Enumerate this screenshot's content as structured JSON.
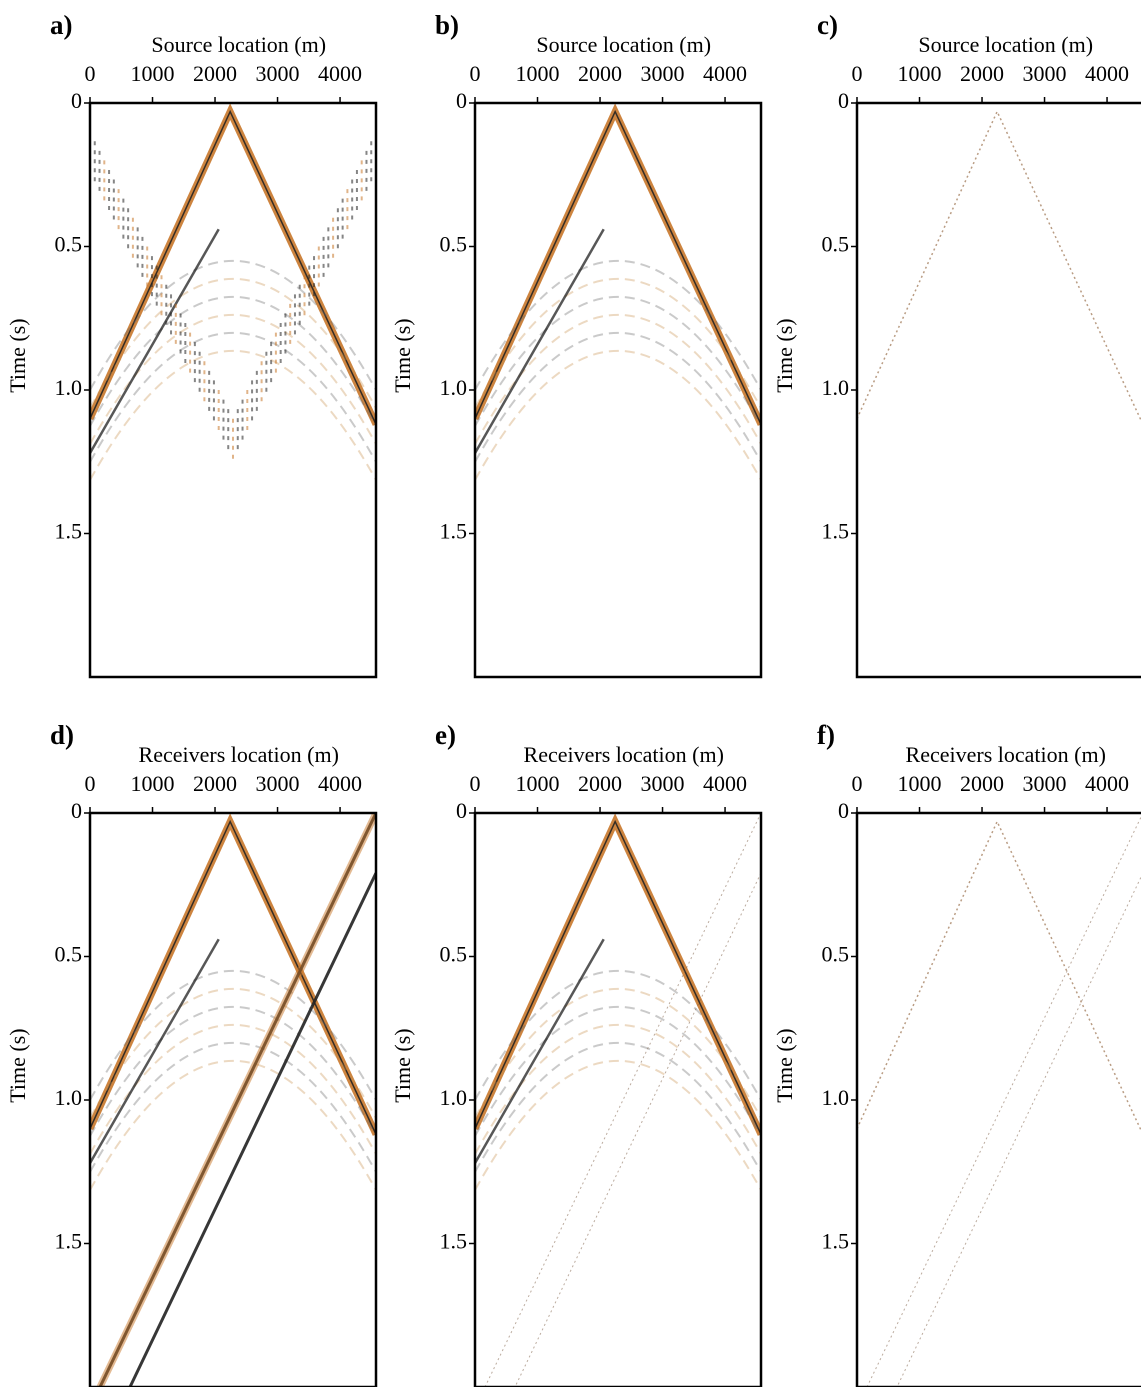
{
  "chart_data": [
    {
      "type": "image",
      "panel_label": "a)",
      "xlabel": "Source location (m)",
      "ylabel": "Time (s)",
      "xlim": [
        0,
        4575
      ],
      "xticks": [
        0,
        1000,
        2000,
        3000,
        4000
      ],
      "ylim": [
        0,
        2.0
      ],
      "yticks": [
        0,
        0.5,
        {
          "value": 1,
          "label": "1.0"
        },
        1.5
      ]
    },
    {
      "type": "image",
      "panel_label": "b)",
      "xlabel": "Source location (m)",
      "ylabel": "Time (s)",
      "xlim": [
        0,
        4575
      ],
      "xticks": [
        0,
        1000,
        2000,
        3000,
        4000
      ],
      "ylim": [
        0,
        2.0
      ],
      "yticks": [
        0,
        0.5,
        {
          "value": 1,
          "label": "1.0"
        },
        1.5
      ]
    },
    {
      "type": "image",
      "panel_label": "c)",
      "xlabel": "Source location (m)",
      "ylabel": "Time (s)",
      "xlim": [
        0,
        4575
      ],
      "xticks": [
        0,
        1000,
        2000,
        3000,
        4000
      ],
      "ylim": [
        0,
        2.0
      ],
      "yticks": [
        0,
        0.5,
        {
          "value": 1,
          "label": "1.0"
        },
        1.5
      ]
    },
    {
      "type": "image",
      "panel_label": "d)",
      "xlabel": "Receivers location (m)",
      "ylabel": "Time (s)",
      "xlim": [
        0,
        4575
      ],
      "xticks": [
        0,
        1000,
        2000,
        3000,
        4000
      ],
      "ylim": [
        0,
        2.0
      ],
      "yticks": [
        0,
        0.5,
        {
          "value": 1,
          "label": "1.0"
        },
        1.5
      ]
    },
    {
      "type": "image",
      "panel_label": "e)",
      "xlabel": "Receivers location (m)",
      "ylabel": "Time (s)",
      "xlim": [
        0,
        4575
      ],
      "xticks": [
        0,
        1000,
        2000,
        3000,
        4000
      ],
      "ylim": [
        0,
        2.0
      ],
      "yticks": [
        0,
        0.5,
        {
          "value": 1,
          "label": "1.0"
        },
        1.5
      ]
    },
    {
      "type": "image",
      "panel_label": "f)",
      "xlabel": "Receivers location (m)",
      "ylabel": "Time (s)",
      "xlim": [
        0,
        4575
      ],
      "xticks": [
        0,
        1000,
        2000,
        3000,
        4000
      ],
      "ylim": [
        0,
        2.0
      ],
      "yticks": [
        0,
        0.5,
        {
          "value": 1,
          "label": "1.0"
        },
        1.5
      ]
    }
  ]
}
